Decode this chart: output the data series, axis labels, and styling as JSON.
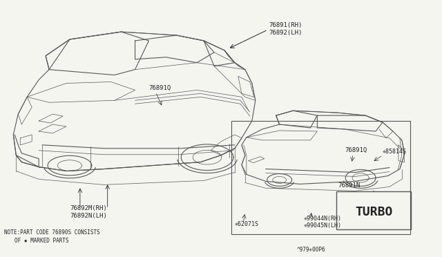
{
  "bg_color": "#f5f5f0",
  "line_color": "#555555",
  "text_color": "#222222",
  "figure_size": [
    6.4,
    3.72
  ],
  "dpi": 100,
  "labels": {
    "top_right_1": "76891(RH)",
    "top_right_2": "76892(LH)",
    "car1_body": "76891Q",
    "bottom_left_rh": "76892M(RH)",
    "bottom_left_lh": "76892N(LH)",
    "car2_body": "76891Q",
    "bottom_62071": "❈62071S",
    "bottom_99044": "❈99044N(RH)",
    "bottom_99045": "❈99045N(LH)",
    "right_85814": "❈85814S",
    "turbo_label": "76891N",
    "note_line1": "NOTE:PART CODE 76890S CONSISTS",
    "note_line2": "OF ✸ MARKED PARTS",
    "diagram_code": "^979❈00P6"
  }
}
